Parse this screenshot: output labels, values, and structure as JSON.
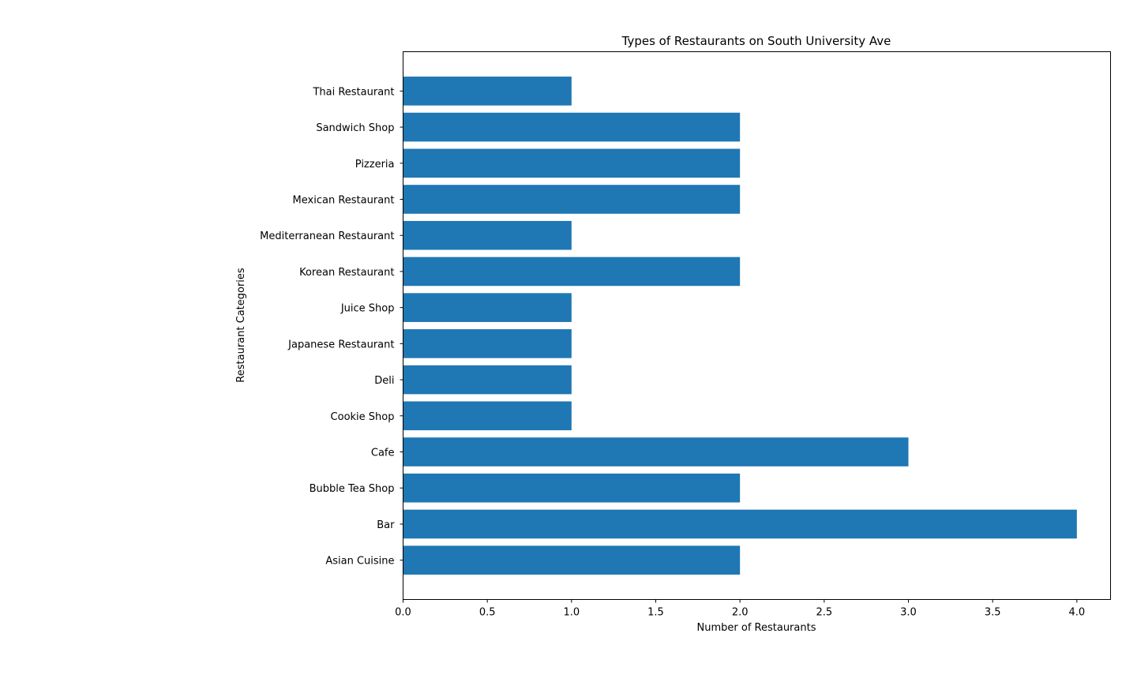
{
  "chart_data": {
    "type": "bar",
    "orientation": "horizontal",
    "title": "Types of Restaurants on South University Ave",
    "xlabel": "Number of Restaurants",
    "ylabel": "Restaurant Categories",
    "categories": [
      "Asian Cuisine ",
      "Bar",
      "Bubble Tea Shop",
      "Cafe",
      "Cookie Shop",
      "Deli",
      "Japanese Restaurant",
      "Juice Shop",
      "Korean Restaurant",
      "Mediterranean Restaurant",
      "Mexican Restaurant",
      "Pizzeria",
      "Sandwich Shop",
      "Thai Restaurant"
    ],
    "values": [
      2,
      4,
      2,
      3,
      1,
      1,
      1,
      1,
      2,
      1,
      2,
      2,
      2,
      1
    ],
    "xlim": [
      0,
      4.2
    ],
    "xticks": [
      "0.0",
      "0.5",
      "1.0",
      "1.5",
      "2.0",
      "2.5",
      "3.0",
      "3.5",
      "4.0"
    ],
    "grid": false,
    "bar_color": "#1f77b4"
  }
}
